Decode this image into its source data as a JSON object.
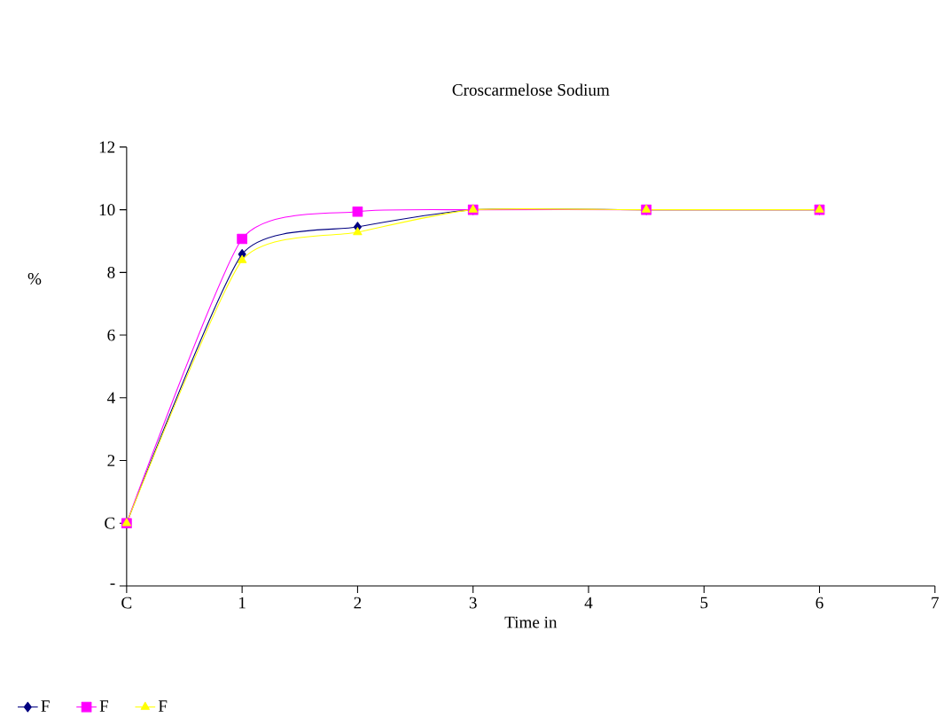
{
  "chart_data": {
    "type": "line",
    "title": "Croscarmelose Sodium",
    "xlabel": "Time   in",
    "ylabel": "%",
    "x": [
      0,
      1,
      2,
      3,
      4.5,
      6
    ],
    "series": [
      {
        "name": "F",
        "color": "#000080",
        "marker": "diamond",
        "values": [
          0,
          8.58,
          9.45,
          10,
          10,
          10
        ]
      },
      {
        "name": "F",
        "color": "#ff00ff",
        "marker": "square",
        "values": [
          0,
          9.07,
          9.94,
          10,
          10,
          10
        ]
      },
      {
        "name": "F",
        "color": "#ffff00",
        "marker": "triangle",
        "values": [
          0,
          8.39,
          9.28,
          10,
          10,
          10
        ]
      }
    ],
    "xlim": [
      0,
      7
    ],
    "xticks": [
      {
        "value": 0,
        "label": "C"
      },
      1,
      2,
      3,
      4,
      5,
      6,
      7
    ],
    "ylim": [
      -2,
      12
    ],
    "yticks": [
      {
        "value": -2,
        "label": "-"
      },
      {
        "value": 0,
        "label": "C"
      },
      2,
      4,
      6,
      8,
      10,
      12
    ],
    "grid": false,
    "legend": "bottom left",
    "line_style": "solid"
  }
}
